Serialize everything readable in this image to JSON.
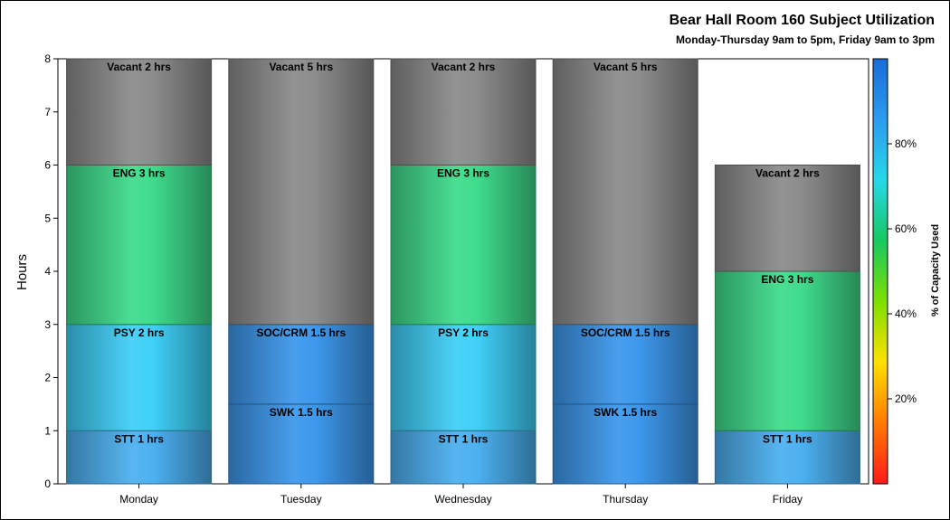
{
  "chart_data": {
    "type": "bar",
    "stacked": true,
    "title": "Bear Hall Room 160 Subject Utilization",
    "subtitle": "Monday-Thursday 9am to 5pm, Friday 9am to 3pm",
    "ylabel": "Hours",
    "ylim": [
      0,
      8
    ],
    "yticks": [
      "0",
      "1",
      "2",
      "3",
      "4",
      "5",
      "6",
      "7",
      "8"
    ],
    "categories": [
      "Monday",
      "Tuesday",
      "Wednesday",
      "Thursday",
      "Friday"
    ],
    "bars": [
      {
        "day": "Monday",
        "segments": [
          {
            "label": "STT 1 hrs",
            "start": 0,
            "end": 1,
            "color": "#4cb0f0"
          },
          {
            "label": "PSY 2 hrs",
            "start": 1,
            "end": 3,
            "color": "#3fd0f8"
          },
          {
            "label": "ENG 3 hrs",
            "start": 3,
            "end": 6,
            "color": "#3fdc8c"
          },
          {
            "label": "Vacant 2 hrs",
            "start": 6,
            "end": 8,
            "color": "#8c8c8c"
          }
        ]
      },
      {
        "day": "Tuesday",
        "segments": [
          {
            "label": "SWK 1.5 hrs",
            "start": 0,
            "end": 1.5,
            "color": "#3d98ec"
          },
          {
            "label": "SOC/CRM 1.5 hrs",
            "start": 1.5,
            "end": 3,
            "color": "#3d98ec"
          },
          {
            "label": "Vacant 5 hrs",
            "start": 3,
            "end": 8,
            "color": "#8c8c8c"
          }
        ]
      },
      {
        "day": "Wednesday",
        "segments": [
          {
            "label": "STT 1 hrs",
            "start": 0,
            "end": 1,
            "color": "#4cb0f0"
          },
          {
            "label": "PSY 2 hrs",
            "start": 1,
            "end": 3,
            "color": "#3fd0f8"
          },
          {
            "label": "ENG 3 hrs",
            "start": 3,
            "end": 6,
            "color": "#3fdc8c"
          },
          {
            "label": "Vacant 2 hrs",
            "start": 6,
            "end": 8,
            "color": "#8c8c8c"
          }
        ]
      },
      {
        "day": "Thursday",
        "segments": [
          {
            "label": "SWK 1.5 hrs",
            "start": 0,
            "end": 1.5,
            "color": "#3d98ec"
          },
          {
            "label": "SOC/CRM 1.5 hrs",
            "start": 1.5,
            "end": 3,
            "color": "#3d98ec"
          },
          {
            "label": "Vacant 5 hrs",
            "start": 3,
            "end": 8,
            "color": "#8c8c8c"
          }
        ]
      },
      {
        "day": "Friday",
        "segments": [
          {
            "label": "STT 1 hrs",
            "start": 0,
            "end": 1,
            "color": "#4cb0f0"
          },
          {
            "label": "ENG 3 hrs",
            "start": 1,
            "end": 4,
            "color": "#3fdc8c"
          },
          {
            "label": "Vacant 2 hrs",
            "start": 4,
            "end": 6,
            "color": "#8c8c8c"
          }
        ]
      }
    ],
    "colorbar": {
      "label": "% of Capacity Used",
      "ticks": [
        "20%",
        "40%",
        "60%",
        "80%"
      ],
      "tick_values": [
        20,
        40,
        60,
        80
      ],
      "range": [
        0,
        100
      ],
      "colors": [
        "#ff1a1a",
        "#ff7a00",
        "#ffe000",
        "#7ee000",
        "#16c860",
        "#26d8e8",
        "#2b9cf0",
        "#1a6cd8"
      ]
    },
    "legend_placement": "right"
  }
}
